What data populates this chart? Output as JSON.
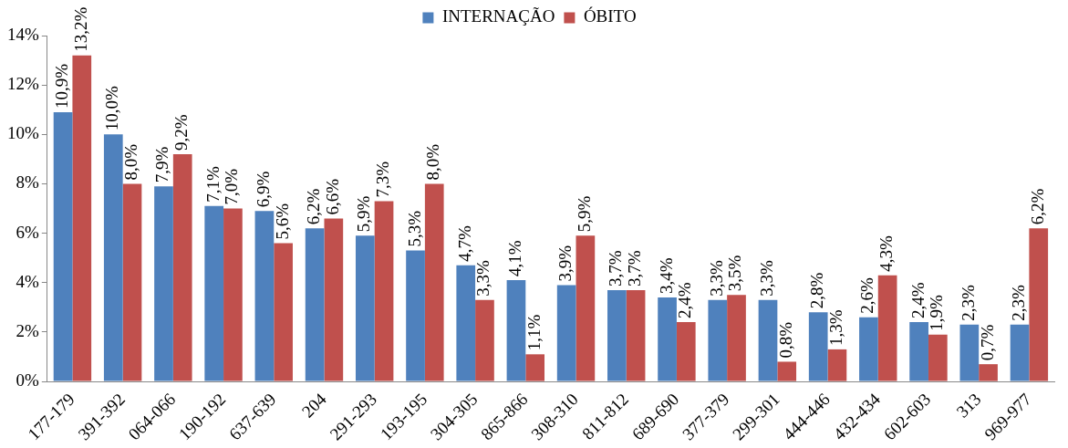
{
  "chart_data": {
    "type": "bar",
    "categories": [
      "177-179",
      "391-392",
      "064-066",
      "190-192",
      "637-639",
      "204",
      "291-293",
      "193-195",
      "304-305",
      "865-866",
      "308-310",
      "811-812",
      "689-690",
      "377-379",
      "299-301",
      "444-446",
      "432-434",
      "602-603",
      "313",
      "969-977"
    ],
    "series": [
      {
        "name": "INTERNAÇÃO",
        "color": "#4f81bd",
        "values": [
          10.9,
          10.0,
          7.9,
          7.1,
          6.9,
          6.2,
          5.9,
          5.3,
          4.7,
          4.1,
          3.9,
          3.7,
          3.4,
          3.3,
          3.3,
          2.8,
          2.6,
          2.4,
          2.3,
          2.3
        ],
        "value_labels": [
          "10,9%",
          "10,0%",
          "7,9%",
          "7,1%",
          "6,9%",
          "6,2%",
          "5,9%",
          "5,3%",
          "4,7%",
          "4,1%",
          "3,9%",
          "3,7%",
          "3,4%",
          "3,3%",
          "3,3%",
          "2,8%",
          "2,6%",
          "2,4%",
          "2,3%",
          "2,3%"
        ]
      },
      {
        "name": "ÓBITO",
        "color": "#c0504d",
        "values": [
          13.2,
          8.0,
          9.2,
          7.0,
          5.6,
          6.6,
          7.3,
          8.0,
          3.3,
          1.1,
          5.9,
          3.7,
          2.4,
          3.5,
          0.8,
          1.3,
          4.3,
          1.9,
          0.7,
          6.2
        ],
        "value_labels": [
          "13,2%",
          "8,0%",
          "9,2%",
          "7,0%",
          "5,6%",
          "6,6%",
          "7,3%",
          "8,0%",
          "3,3%",
          "1,1%",
          "5,9%",
          "3,7%",
          "2,4%",
          "3,5%",
          "0,8%",
          "1,3%",
          "4,3%",
          "1,9%",
          "0,7%",
          "6,2%"
        ]
      }
    ],
    "ylim": [
      0,
      14
    ],
    "yticks": [
      {
        "value": 0,
        "label": "0%"
      },
      {
        "value": 2,
        "label": "2%"
      },
      {
        "value": 4,
        "label": "4%"
      },
      {
        "value": 6,
        "label": "6%"
      },
      {
        "value": 8,
        "label": "8%"
      },
      {
        "value": 10,
        "label": "10%"
      },
      {
        "value": 12,
        "label": "12%"
      },
      {
        "value": 14,
        "label": "14%"
      }
    ],
    "grid": false,
    "legend": "top"
  }
}
